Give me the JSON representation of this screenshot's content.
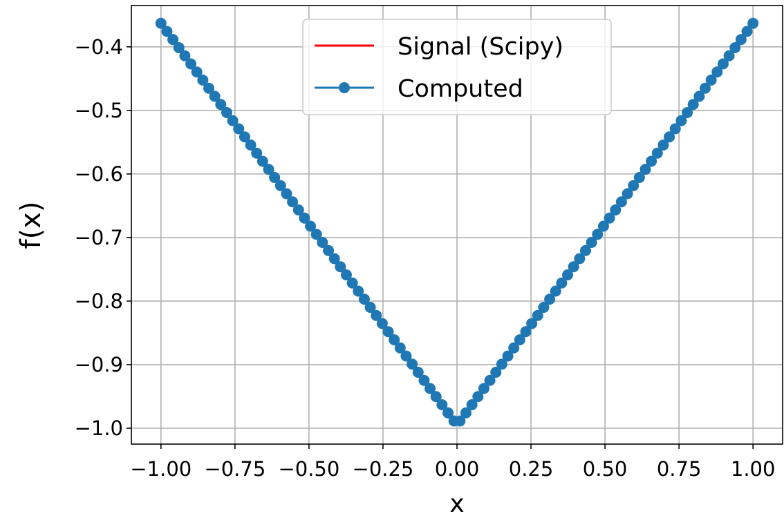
{
  "chart_data": {
    "type": "line",
    "title": "",
    "xlabel": "x",
    "ylabel": "f(x)",
    "xlim": [
      -1.1,
      1.1
    ],
    "ylim": [
      -1.025,
      -0.335
    ],
    "x_ticks": [
      -1.0,
      -0.75,
      -0.5,
      -0.25,
      0.0,
      0.25,
      0.5,
      0.75,
      1.0
    ],
    "x_tick_labels": [
      "−1.00",
      "−0.75",
      "−0.50",
      "−0.25",
      "0.00",
      "0.25",
      "0.50",
      "0.75",
      "1.00"
    ],
    "y_ticks": [
      -1.0,
      -0.9,
      -0.8,
      -0.7,
      -0.6,
      -0.5,
      -0.4
    ],
    "y_tick_labels": [
      "−1.0",
      "−0.9",
      "−0.8",
      "−0.7",
      "−0.6",
      "−0.5",
      "−0.4"
    ],
    "grid": true,
    "legend_position": "top-center",
    "series": [
      {
        "name": "Signal (Scipy)",
        "color": "#ff0000",
        "marker": "none",
        "function": "f(x) = -0.995 + 0.632*|x|, x in [-1, 1]",
        "x_range": [
          -1.0,
          1.0
        ],
        "points": 100
      },
      {
        "name": "Computed",
        "color": "#1f77b4",
        "marker": "circle",
        "function": "f(x) = -0.995 + 0.632*|x|, x in [-1, 1]",
        "x_range": [
          -1.0,
          1.0
        ],
        "points": 100
      }
    ]
  }
}
